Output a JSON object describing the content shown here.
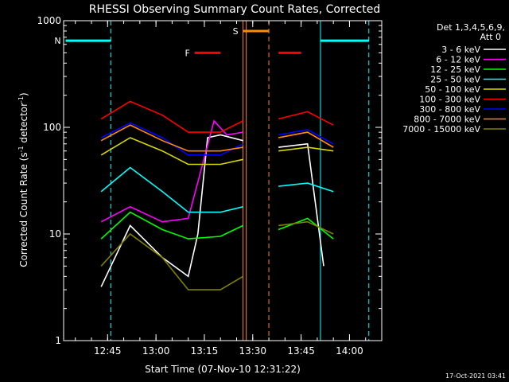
{
  "chart_data": {
    "type": "line",
    "title": "RHESSI Observing Summary Count Rates, Corrected",
    "xlabel": "Start Time (07-Nov-10 12:31:22)",
    "ylabel_main": "Corrected Count Rate (s",
    "ylabel_sup1": "-1",
    "ylabel_mid": " detector",
    "ylabel_sup2": "-1",
    "ylabel_end": ")",
    "yscale": "log",
    "ylim": [
      1,
      1000
    ],
    "y_ticks": [
      1,
      10,
      100,
      1000
    ],
    "y_tick_labels": [
      "1",
      "10",
      "100",
      "1000"
    ],
    "xlim": [
      "12:31:22",
      "14:10"
    ],
    "x_ticks": [
      "12:45",
      "13:00",
      "13:15",
      "13:30",
      "13:45",
      "14:00"
    ],
    "grid": false,
    "legend_placement": "top-right",
    "detector_info": [
      "Det 1,3,4,5,6,9,",
      "Att 0"
    ],
    "timestamp": "17-Oct-2021 03:41",
    "series": [
      {
        "name": "3 - 6 keV",
        "color": "#ffffff"
      },
      {
        "name": "6 - 12 keV",
        "color": "#ff00ff"
      },
      {
        "name": "12 - 25 keV",
        "color": "#00ff00"
      },
      {
        "name": "25 - 50 keV",
        "color": "#00ffff"
      },
      {
        "name": "50 - 100 keV",
        "color": "#d8d800"
      },
      {
        "name": "100 - 300 keV",
        "color": "#ff0000"
      },
      {
        "name": "300 - 800 keV",
        "color": "#0000ff"
      },
      {
        "name": "800 - 7000 keV",
        "color": "#ff8c00"
      },
      {
        "name": "7000 - 15000 keV",
        "color": "#808000"
      }
    ],
    "flag_bars": [
      {
        "label": "N",
        "color": "#00ffff",
        "start": "12:32",
        "end": "12:46",
        "level": 650
      },
      {
        "label": "F",
        "color": "#ff0000",
        "start": "13:12",
        "end": "13:20",
        "level": 500
      },
      {
        "label": "S",
        "color": "#ff8c00",
        "start": "13:27",
        "end": "13:35",
        "level": 800
      },
      {
        "label": "",
        "color": "#ff0000",
        "start": "13:38",
        "end": "13:45",
        "level": 500
      },
      {
        "label": "",
        "color": "#00ffff",
        "start": "13:51",
        "end": "14:06",
        "level": 650
      }
    ],
    "night_markers": [
      {
        "color": "#00ffff",
        "style": "dashed",
        "time": "12:46"
      },
      {
        "color": "#ff8c00",
        "style": "solid",
        "time": "13:27"
      },
      {
        "color": "#ff8c00",
        "style": "solid",
        "time": "13:28"
      },
      {
        "color": "#ff8c00",
        "style": "dashed",
        "time": "13:35"
      },
      {
        "color": "#00ffff",
        "style": "solid",
        "time": "13:51"
      },
      {
        "color": "#00ffff",
        "style": "dashed",
        "time": "14:06"
      }
    ],
    "data_segments": [
      {
        "start": "12:43",
        "end": "13:27"
      },
      {
        "start": "13:38",
        "end": "13:55"
      }
    ],
    "series_profiles": [
      {
        "name": "3 - 6 keV",
        "points": [
          [
            "12:43",
            3.2
          ],
          [
            "12:52",
            12
          ],
          [
            "13:02",
            6
          ],
          [
            "13:10",
            4
          ],
          [
            "13:13",
            10
          ],
          [
            "13:16",
            80
          ],
          [
            "13:20",
            85
          ],
          [
            "13:27",
            75
          ],
          [
            "13:38",
            65
          ],
          [
            "13:47",
            70
          ],
          [
            "13:52",
            5
          ]
        ]
      },
      {
        "name": "6 - 12 keV",
        "points": [
          [
            "12:43",
            13
          ],
          [
            "12:52",
            18
          ],
          [
            "13:02",
            13
          ],
          [
            "13:10",
            14
          ],
          [
            "13:14",
            40
          ],
          [
            "13:18",
            115
          ],
          [
            "13:22",
            85
          ],
          [
            "13:27",
            90
          ],
          [
            "13:38",
            80
          ],
          [
            "13:47",
            90
          ],
          [
            "13:55",
            65
          ]
        ]
      },
      {
        "name": "12 - 25 keV",
        "points": [
          [
            "12:43",
            9
          ],
          [
            "12:52",
            16
          ],
          [
            "13:02",
            11
          ],
          [
            "13:10",
            9
          ],
          [
            "13:20",
            9.5
          ],
          [
            "13:27",
            12
          ],
          [
            "13:38",
            11
          ],
          [
            "13:47",
            14
          ],
          [
            "13:55",
            9
          ]
        ]
      },
      {
        "name": "25 - 50 keV",
        "points": [
          [
            "12:43",
            25
          ],
          [
            "12:52",
            42
          ],
          [
            "13:02",
            25
          ],
          [
            "13:10",
            16
          ],
          [
            "13:20",
            16
          ],
          [
            "13:27",
            18
          ],
          [
            "13:38",
            28
          ],
          [
            "13:47",
            30
          ],
          [
            "13:55",
            25
          ]
        ]
      },
      {
        "name": "50 - 100 keV",
        "points": [
          [
            "12:43",
            55
          ],
          [
            "12:52",
            80
          ],
          [
            "13:02",
            60
          ],
          [
            "13:10",
            45
          ],
          [
            "13:20",
            45
          ],
          [
            "13:27",
            50
          ],
          [
            "13:38",
            60
          ],
          [
            "13:47",
            65
          ],
          [
            "13:55",
            60
          ]
        ]
      },
      {
        "name": "100 - 300 keV",
        "points": [
          [
            "12:43",
            120
          ],
          [
            "12:52",
            175
          ],
          [
            "13:02",
            130
          ],
          [
            "13:10",
            90
          ],
          [
            "13:20",
            90
          ],
          [
            "13:27",
            115
          ],
          [
            "13:38",
            120
          ],
          [
            "13:47",
            140
          ],
          [
            "13:55",
            105
          ]
        ]
      },
      {
        "name": "300 - 800 keV",
        "points": [
          [
            "12:43",
            80
          ],
          [
            "12:52",
            110
          ],
          [
            "13:02",
            80
          ],
          [
            "13:10",
            55
          ],
          [
            "13:20",
            55
          ],
          [
            "13:27",
            70
          ],
          [
            "13:38",
            85
          ],
          [
            "13:47",
            95
          ],
          [
            "13:55",
            70
          ]
        ]
      },
      {
        "name": "800 - 7000 keV",
        "points": [
          [
            "12:43",
            75
          ],
          [
            "12:52",
            105
          ],
          [
            "13:02",
            75
          ],
          [
            "13:10",
            60
          ],
          [
            "13:20",
            60
          ],
          [
            "13:27",
            65
          ],
          [
            "13:38",
            80
          ],
          [
            "13:47",
            90
          ],
          [
            "13:55",
            65
          ]
        ]
      },
      {
        "name": "7000 - 15000 keV",
        "points": [
          [
            "12:43",
            5
          ],
          [
            "12:52",
            10
          ],
          [
            "13:02",
            6
          ],
          [
            "13:10",
            3
          ],
          [
            "13:20",
            3
          ],
          [
            "13:27",
            4
          ],
          [
            "13:38",
            12
          ],
          [
            "13:47",
            13
          ],
          [
            "13:55",
            10
          ]
        ]
      }
    ]
  }
}
